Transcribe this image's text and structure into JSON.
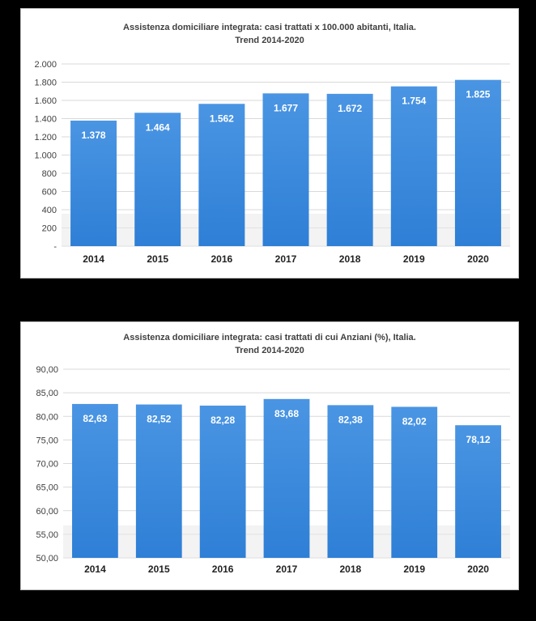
{
  "chart_data": [
    {
      "type": "bar",
      "title": "Assistenza domiciliare integrata: casi trattati  x 100.000 abitanti, Italia.",
      "subtitle": "Trend 2014-2020",
      "categories": [
        "2014",
        "2015",
        "2016",
        "2017",
        "2018",
        "2019",
        "2020"
      ],
      "values": [
        1378,
        1464,
        1562,
        1677,
        1672,
        1754,
        1825
      ],
      "value_labels": [
        "1.378",
        "1.464",
        "1.562",
        "1.677",
        "1.672",
        "1.754",
        "1.825"
      ],
      "ylim": [
        0,
        2000
      ],
      "yticks": [
        0,
        200,
        400,
        600,
        800,
        1000,
        1200,
        1400,
        1600,
        1800,
        2000
      ],
      "ytick_labels": [
        "-",
        "200",
        "400",
        "600",
        "800",
        "1.000",
        "1.200",
        "1.400",
        "1.600",
        "1.800",
        "2.000"
      ],
      "grid": true,
      "bar_color": "#2e7fd6"
    },
    {
      "type": "bar",
      "title": "Assistenza domiciliare integrata: casi trattati di cui Anziani (%), Italia.",
      "subtitle": "Trend 2014-2020",
      "categories": [
        "2014",
        "2015",
        "2016",
        "2017",
        "2018",
        "2019",
        "2020"
      ],
      "values": [
        82.63,
        82.52,
        82.28,
        83.68,
        82.38,
        82.02,
        78.12
      ],
      "value_labels": [
        "82,63",
        "82,52",
        "82,28",
        "83,68",
        "82,38",
        "82,02",
        "78,12"
      ],
      "ylim": [
        50,
        90
      ],
      "yticks": [
        50,
        55,
        60,
        65,
        70,
        75,
        80,
        85,
        90
      ],
      "ytick_labels": [
        "50,00",
        "55,00",
        "60,00",
        "65,00",
        "70,00",
        "75,00",
        "80,00",
        "85,00",
        "90,00"
      ],
      "grid": true,
      "bar_color": "#2e7fd6"
    }
  ]
}
